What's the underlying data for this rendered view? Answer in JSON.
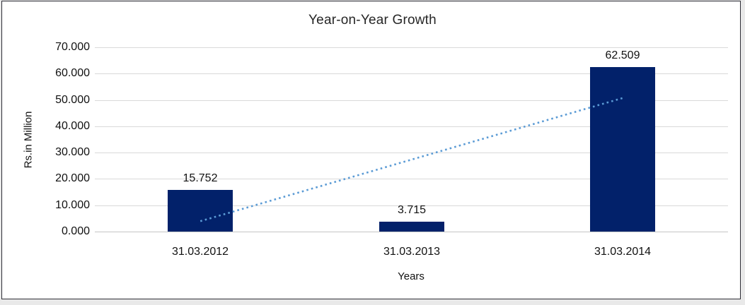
{
  "window": {
    "background_color": "#e9e9e9",
    "border_color": "#2e2e36"
  },
  "chart_data": {
    "type": "bar",
    "title": "Year-on-Year Growth",
    "xlabel": "Years",
    "ylabel": "Rs.in Million",
    "categories": [
      "31.03.2012",
      "31.03.2013",
      "31.03.2014"
    ],
    "values": [
      15.752,
      3.715,
      62.509
    ],
    "data_labels": [
      "15.752",
      "3.715",
      "62.509"
    ],
    "ylim": [
      0,
      70
    ],
    "ytick_step": 10,
    "ytick_labels": [
      "0.000",
      "10.000",
      "20.000",
      "30.000",
      "40.000",
      "50.000",
      "60.000",
      "70.000"
    ],
    "grid": "horizontal",
    "legend_position": "none",
    "bar_color": "#02216a",
    "gridline_color": "#d9d9d9",
    "text_color": "#111111",
    "trendline": {
      "type": "linear",
      "style": "dotted",
      "color": "#5b9bd5",
      "start_value": 3.95,
      "end_value": 50.7
    }
  }
}
